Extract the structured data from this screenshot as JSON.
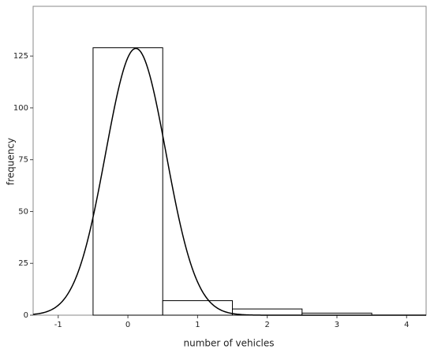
{
  "chart_data": {
    "type": "histogram",
    "x_label": "number of vehicles",
    "y_label": "frequency",
    "bins": [
      -0.5,
      0.5,
      1.5,
      2.5,
      3.5
    ],
    "counts": [
      129,
      7,
      3,
      1
    ],
    "normal_curve": {
      "mean": 0.114,
      "sd": 0.434
    },
    "xlim": [
      -1.36,
      4.28
    ],
    "xticks": [
      -1,
      0,
      1,
      2,
      3,
      4
    ],
    "ylim": [
      0,
      149
    ],
    "yticks": [
      0,
      25,
      50,
      75,
      100,
      125
    ],
    "bar_color": "#ffffff",
    "line_color": "#000000"
  }
}
